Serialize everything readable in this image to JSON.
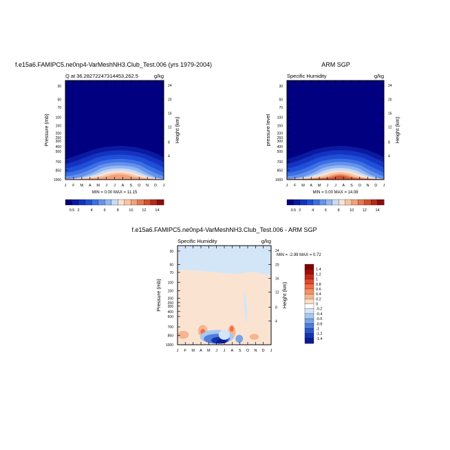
{
  "chart_data": [
    {
      "type": "heatmap",
      "title": "f.e15a6.FAMIPC5.ne0np4-VarMeshNH3.Club_Test.006 (yrs 1979-2004)",
      "left_label": "Q at 36.282722473144​53,262.5",
      "right_label": "g/kg",
      "ylabel": "Pressure (mb)",
      "ylabel_right": "Height (km)",
      "x_ticks": [
        "J",
        "F",
        "M",
        "A",
        "M",
        "J",
        "J",
        "A",
        "S",
        "O",
        "N",
        "D",
        "J"
      ],
      "y_ticks": [
        "30",
        "50",
        "70",
        "100",
        "150",
        "200",
        "250",
        "300",
        "400",
        "500",
        "700",
        "850",
        "1000"
      ],
      "y_ticks_right": [
        "24",
        "20",
        "16",
        "12",
        "8",
        "4"
      ],
      "stats": "MIN =   0.00 MAX =  11.15",
      "min": 0.0,
      "max": 11.15,
      "colorbar_labels": [
        "0.5",
        "2",
        "4",
        "6",
        "8",
        "10",
        "12",
        "14"
      ]
    },
    {
      "type": "heatmap",
      "title": "ARM SGP",
      "left_label": "Specific Humidity",
      "right_label": "g/kg",
      "ylabel": "pressure level",
      "ylabel_right": "Height (km)",
      "x_ticks": [
        "J",
        "F",
        "M",
        "A",
        "M",
        "J",
        "J",
        "A",
        "S",
        "O",
        "N",
        "D",
        "J"
      ],
      "y_ticks": [
        "30",
        "50",
        "70",
        "100",
        "150",
        "200",
        "250",
        "300",
        "400",
        "500",
        "700",
        "850",
        "1000"
      ],
      "y_ticks_right": [
        "24",
        "20",
        "16",
        "12",
        "8",
        "4"
      ],
      "stats": "MIN =   0.00 MAX =  14.08",
      "min": 0.0,
      "max": 14.08,
      "colorbar_labels": [
        "0.5",
        "2",
        "4",
        "6",
        "8",
        "10",
        "12",
        "14"
      ]
    },
    {
      "type": "heatmap",
      "title": "f.e15a6.FAMIPC5.ne0np4-VarMeshNH3.Club_Test.006 - ARM SGP",
      "left_label": "Specific Humidity",
      "right_label": "g/kg",
      "ylabel": "Pressure (mb)",
      "ylabel_right": "Height (km)",
      "x_ticks": [
        "J",
        "F",
        "M",
        "A",
        "M",
        "J",
        "J",
        "A",
        "S",
        "O",
        "N",
        "D",
        "J"
      ],
      "y_ticks": [
        "30",
        "50",
        "70",
        "100",
        "150",
        "200",
        "250",
        "300",
        "400",
        "500",
        "700",
        "850",
        "1000"
      ],
      "y_ticks_right": [
        "24",
        "20",
        "16",
        "12",
        "8",
        "4"
      ],
      "stats": "MIN =  -2.99 MAX =   0.72",
      "min": -2.99,
      "max": 0.72,
      "colorbar_labels": [
        "1.4",
        "1.2",
        "1",
        "0.8",
        "0.6",
        "0.4",
        "0.2",
        "0",
        "-0.2",
        "-0.4",
        "-0.6",
        "-0.8",
        "-1",
        "-1.2",
        "-1.4"
      ]
    }
  ],
  "colors": {
    "seq": [
      "#000080",
      "#0a1aa0",
      "#1533c0",
      "#1f4fd8",
      "#3c6fe4",
      "#6592ec",
      "#93b6f2",
      "#c6dcf7",
      "#fbe3d2",
      "#f7c4a5",
      "#f2a07a",
      "#e57850",
      "#d2502f",
      "#b52818",
      "#8a0e0e"
    ],
    "div": [
      "#800000",
      "#a00d0d",
      "#c2291c",
      "#dd4a2b",
      "#ef6d44",
      "#f59167",
      "#f7b490",
      "#fbdcc4",
      "#ffffff",
      "#d3e6f8",
      "#a8c7ef",
      "#7aa3e6",
      "#4f7edb",
      "#2c57cb",
      "#1534b1",
      "#0a1a95"
    ]
  }
}
